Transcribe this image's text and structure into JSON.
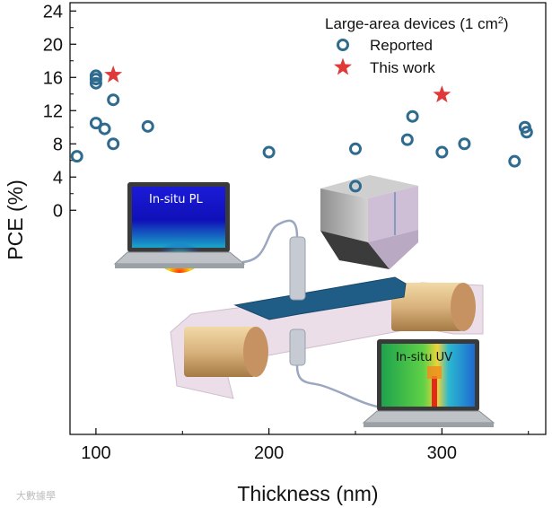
{
  "chart_data": {
    "type": "scatter",
    "xlabel": "Thickness (nm)",
    "ylabel": "PCE (%)",
    "xlim": [
      85,
      360
    ],
    "ylim": [
      -27,
      25
    ],
    "xticks": [
      100,
      200,
      300
    ],
    "yticks": [
      0,
      4,
      8,
      12,
      16,
      20,
      24
    ],
    "grid": false,
    "legend": {
      "title": "Large-area devices (1 cm",
      "title_sup": "2",
      "title_end": ")",
      "placement": "top-right"
    },
    "series": [
      {
        "name": "Reported",
        "marker": "open-circle",
        "color": "#2f6b8f",
        "points": [
          [
            89,
            6.5
          ],
          [
            100,
            15.3
          ],
          [
            100,
            15.8
          ],
          [
            100,
            16.2
          ],
          [
            100,
            10.5
          ],
          [
            105,
            9.8
          ],
          [
            110,
            13.3
          ],
          [
            110,
            8.0
          ],
          [
            130,
            10.1
          ],
          [
            200,
            7.0
          ],
          [
            250,
            7.4
          ],
          [
            250,
            2.9
          ],
          [
            280,
            8.5
          ],
          [
            283,
            11.3
          ],
          [
            300,
            7.0
          ],
          [
            313,
            8.0
          ],
          [
            342,
            5.9
          ],
          [
            348,
            10.0
          ],
          [
            349,
            9.4
          ]
        ]
      },
      {
        "name": "This work",
        "marker": "star",
        "color": "#e0393a",
        "points": [
          [
            110,
            16.3
          ],
          [
            300,
            13.9
          ]
        ]
      }
    ]
  },
  "inset": {
    "pl_label": "In-situ PL",
    "uv_label": "In-situ UV"
  },
  "watermark": "大數據學"
}
